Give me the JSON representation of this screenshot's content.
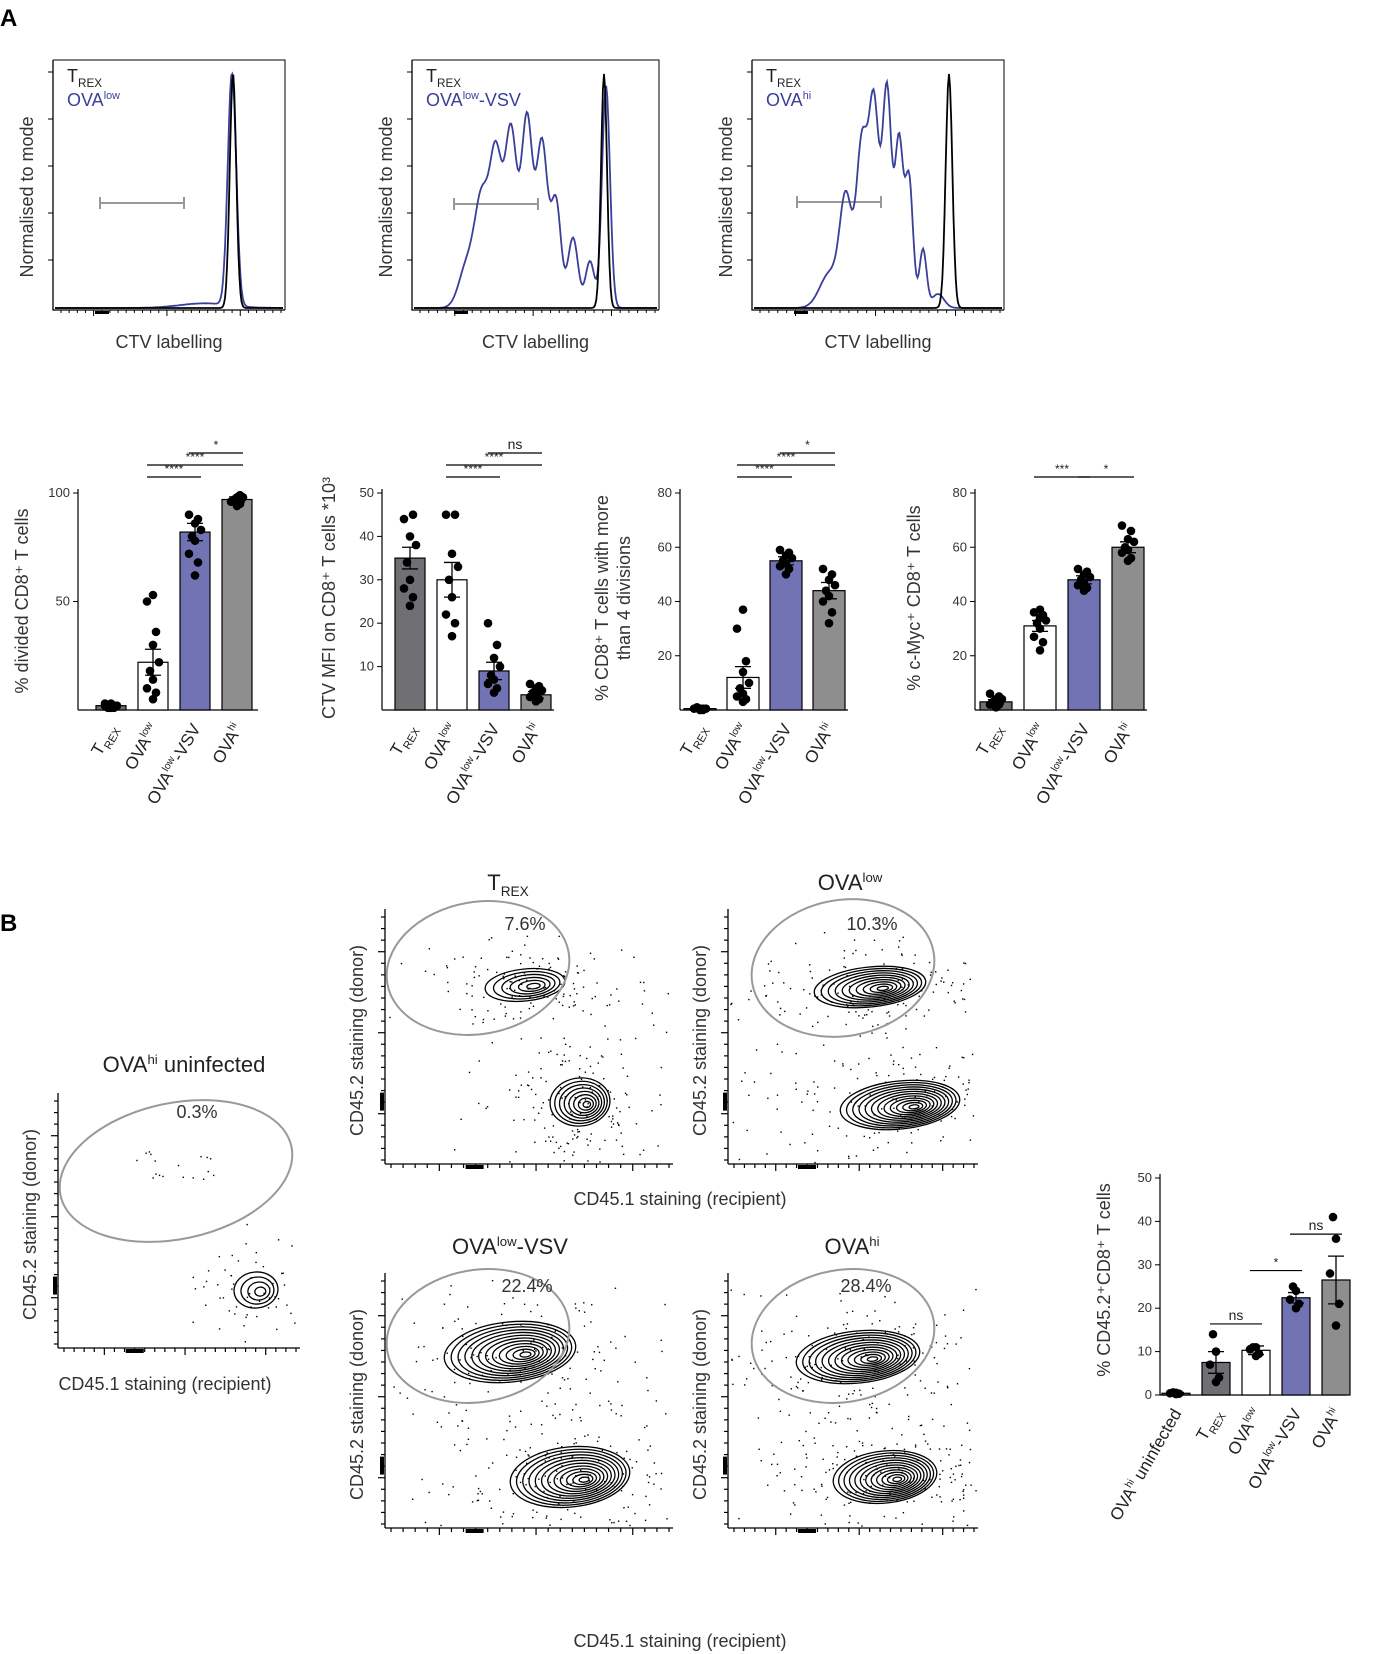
{
  "panels": {
    "a": "A",
    "b": "B"
  },
  "colors": {
    "trex": "#6f6f74",
    "ova_low": "#ffffff",
    "ova_low_vsv": "#7173b5",
    "ova_hi": "#8e8e8e",
    "histogram_blue": "#3a3f9a",
    "histogram_black": "#000000",
    "gate": "#999999",
    "light_gray": "#e6e6e6"
  },
  "histograms": [
    {
      "y_label": "Normalised to mode",
      "x_label": "CTV labelling",
      "legend": [
        {
          "base": "T",
          "sub": "REX",
          "sup": ""
        },
        {
          "base": "OVA",
          "sub": "",
          "sup": "low",
          "tail": ""
        }
      ]
    },
    {
      "y_label": "Normalised to mode",
      "x_label": "CTV labelling",
      "legend": [
        {
          "base": "T",
          "sub": "REX",
          "sup": ""
        },
        {
          "base": "OVA",
          "sub": "",
          "sup": "low",
          "tail": "-VSV"
        }
      ]
    },
    {
      "y_label": "Normalised to mode",
      "x_label": "CTV labelling",
      "legend": [
        {
          "base": "T",
          "sub": "REX",
          "sup": ""
        },
        {
          "base": "OVA",
          "sub": "",
          "sup": "hi",
          "tail": ""
        }
      ]
    }
  ],
  "category_labels": {
    "trex": {
      "base": "T",
      "sub": "REX"
    },
    "ova_low": {
      "base": "OVA",
      "sup": "low"
    },
    "ova_low_vsv": {
      "base": "OVA",
      "sup": "low",
      "tail": "-VSV"
    },
    "ova_hi": {
      "base": "OVA",
      "sup": "hi"
    },
    "ova_hi_uninfected": {
      "base": "OVA",
      "sup": "hi",
      "tail": " uninfected"
    }
  },
  "chart_data": [
    {
      "id": "divided",
      "type": "bar",
      "title": "",
      "ylabel": "% divided CD8⁺ T cells",
      "categories": [
        "T_REX",
        "OVA^low",
        "OVA^low-VSV",
        "OVA^hi"
      ],
      "values": [
        2,
        22,
        82,
        97
      ],
      "errors": [
        0.5,
        6,
        4,
        1.2
      ],
      "points": [
        [
          1,
          2,
          3,
          2,
          1,
          2,
          3,
          1,
          2
        ],
        [
          5,
          8,
          10,
          14,
          18,
          22,
          30,
          36,
          50,
          53
        ],
        [
          62,
          68,
          72,
          78,
          80,
          83,
          86,
          88,
          90
        ],
        [
          94,
          95,
          96,
          97,
          97,
          98,
          98,
          99
        ]
      ],
      "ylim": [
        0,
        100
      ],
      "yticks": [
        50,
        100
      ],
      "significance": [
        {
          "from": 1,
          "to": 2,
          "label": "****",
          "level": 1
        },
        {
          "from": 1,
          "to": 3,
          "label": "****",
          "level": 2
        },
        {
          "from": 2,
          "to": 3,
          "label": "*",
          "level": 3
        }
      ]
    },
    {
      "id": "mfi",
      "type": "bar",
      "title": "",
      "ylabel": "CTV MFI on CD8⁺ T cells *10³",
      "categories": [
        "T_REX",
        "OVA^low",
        "OVA^low-VSV",
        "OVA^hi"
      ],
      "values": [
        35,
        30,
        9,
        3.5
      ],
      "errors": [
        2.5,
        4,
        2,
        0.8
      ],
      "points": [
        [
          24,
          26,
          28,
          30,
          34,
          38,
          40,
          45,
          44
        ],
        [
          17,
          20,
          22,
          26,
          30,
          33,
          36,
          45,
          45
        ],
        [
          4,
          5,
          6,
          7,
          8,
          10,
          12,
          15,
          20
        ],
        [
          2,
          2.5,
          3,
          3.5,
          4,
          4.5,
          5,
          5.5,
          6
        ]
      ],
      "ylim": [
        0,
        50
      ],
      "yticks": [
        10,
        20,
        30,
        40,
        50
      ],
      "significance": [
        {
          "from": 1,
          "to": 2,
          "label": "****",
          "level": 1
        },
        {
          "from": 1,
          "to": 3,
          "label": "****",
          "level": 2
        },
        {
          "from": 2,
          "to": 3,
          "label": "ns",
          "level": 3
        }
      ]
    },
    {
      "id": "divisions",
      "type": "bar",
      "title": "",
      "ylabel": "% CD8⁺ T cells with more than 4 divisions",
      "categories": [
        "T_REX",
        "OVA^low",
        "OVA^low-VSV",
        "OVA^hi"
      ],
      "values": [
        0.5,
        12,
        55,
        44
      ],
      "errors": [
        0.2,
        4,
        1.5,
        3
      ],
      "points": [
        [
          0,
          0,
          0.5,
          0.5,
          1,
          0.5,
          0,
          0.5
        ],
        [
          3,
          4,
          5,
          6,
          8,
          10,
          14,
          18,
          30,
          37
        ],
        [
          50,
          52,
          53,
          54,
          55,
          56,
          57,
          58,
          59
        ],
        [
          32,
          36,
          40,
          42,
          44,
          46,
          48,
          50,
          52
        ]
      ],
      "ylim": [
        0,
        80
      ],
      "yticks": [
        20,
        40,
        60,
        80
      ],
      "significance": [
        {
          "from": 1,
          "to": 2,
          "label": "****",
          "level": 1
        },
        {
          "from": 1,
          "to": 3,
          "label": "****",
          "level": 2
        },
        {
          "from": 2,
          "to": 3,
          "label": "*",
          "level": 3
        }
      ]
    },
    {
      "id": "cmyc",
      "type": "bar",
      "title": "",
      "ylabel": "% c-Myc⁺ CD8⁺ T cells",
      "categories": [
        "T_REX",
        "OVA^low",
        "OVA^low-VSV",
        "OVA^hi"
      ],
      "values": [
        3,
        31,
        48,
        60
      ],
      "errors": [
        0.8,
        2,
        1.5,
        2
      ],
      "points": [
        [
          1,
          2,
          2,
          3,
          3,
          4,
          4,
          5,
          6
        ],
        [
          22,
          25,
          27,
          30,
          32,
          33,
          34,
          35,
          36,
          37
        ],
        [
          44,
          45,
          46,
          47,
          48,
          49,
          50,
          51,
          52
        ],
        [
          55,
          56,
          58,
          59,
          60,
          62,
          63,
          66,
          68
        ]
      ],
      "ylim": [
        0,
        80
      ],
      "yticks": [
        20,
        40,
        60,
        80
      ],
      "significance": [
        {
          "from": 1,
          "to": 2,
          "label": "***",
          "level": 1
        },
        {
          "from": 2,
          "to": 3,
          "label": "*",
          "level": 1
        }
      ]
    },
    {
      "id": "cd45",
      "type": "bar",
      "title": "",
      "ylabel": "% CD45.2⁺CD8⁺ T cells",
      "categories": [
        "OVA^hi uninfected",
        "T_REX",
        "OVA^low",
        "OVA^low-VSV",
        "OVA^hi"
      ],
      "values": [
        0.4,
        7.5,
        10.3,
        22.4,
        26.5
      ],
      "errors": [
        0.2,
        2.5,
        1,
        1.2,
        5.5
      ],
      "points": [
        [
          0.2,
          0.3,
          0.4,
          0.5,
          0.6
        ],
        [
          3,
          4,
          7,
          10,
          14
        ],
        [
          9,
          9.5,
          10.5,
          11,
          11
        ],
        [
          20,
          21,
          22,
          24,
          25
        ],
        [
          16,
          21,
          28,
          36,
          41
        ]
      ],
      "ylim": [
        0,
        50
      ],
      "yticks": [
        0,
        10,
        20,
        30,
        40,
        50
      ],
      "significance": [
        {
          "from": 1,
          "to": 2,
          "label": "ns",
          "level": 1
        },
        {
          "from": 2,
          "to": 3,
          "label": "*",
          "level": 2
        },
        {
          "from": 3,
          "to": 4,
          "label": "ns",
          "level": 3
        }
      ]
    }
  ],
  "flow_plots": [
    {
      "id": "uninf",
      "title": "OVA^hi uninfected",
      "percent": "0.3%",
      "y_label": "CD45.2 staining (donor)",
      "x_label": "CD45.1 staining (recipient)"
    },
    {
      "id": "trex",
      "title": "T_REX",
      "percent": "7.6%",
      "y_label": "CD45.2 staining (donor)",
      "x_label": ""
    },
    {
      "id": "ovalow",
      "title": "OVA^low",
      "percent": "10.3%",
      "y_label": "CD45.2 staining (donor)",
      "x_label": ""
    },
    {
      "id": "vsv",
      "title": "OVA^low-VSV",
      "percent": "22.4%",
      "y_label": "CD45.2 staining (donor)",
      "x_label": ""
    },
    {
      "id": "ovahi",
      "title": "OVA^hi",
      "percent": "28.4%",
      "y_label": "CD45.2 staining (donor)",
      "x_label": ""
    }
  ],
  "shared_x_labels": {
    "top_row": "CD45.1 staining (recipient)",
    "bottom_row": "CD45.1 staining (recipient)"
  }
}
